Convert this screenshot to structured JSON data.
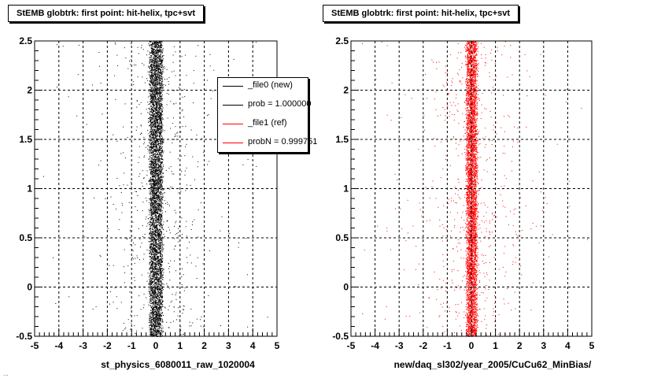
{
  "colors": {
    "new": "#000000",
    "ref": "#ff0000",
    "grid": "#000000",
    "background": "#ffffff"
  },
  "footer": {
    "text": "..."
  },
  "chart_data": [
    {
      "type": "scatter",
      "title": "StEMB globtrk: first point: hit-helix, tpc+svt",
      "xlabel": "st_physics_6080011_raw_1020004",
      "ylabel": "",
      "xlim": [
        -5,
        5
      ],
      "ylim": [
        -0.5,
        2.5
      ],
      "xticks": [
        -5,
        -4,
        -3,
        -2,
        -1,
        0,
        1,
        2,
        3,
        4,
        5
      ],
      "yticks": [
        -0.5,
        0,
        0.5,
        1,
        1.5,
        2,
        2.5
      ],
      "xtick_labels": [
        "-5",
        "-4",
        "-3",
        "-2",
        "-1",
        "0",
        "1",
        "2",
        "3",
        "4",
        "5"
      ],
      "ytick_labels": [
        "-0.5",
        "0",
        "0.5",
        "1",
        "1.5",
        "2",
        "2.5"
      ],
      "grid": true,
      "legend_position": "top-right",
      "series": [
        {
          "name": "_file0 (new)",
          "color": "#000000",
          "x_center": 0.0,
          "x_core_width": 0.5,
          "density": "very high"
        }
      ],
      "legend": [
        {
          "label": "_file0 (new)",
          "color": "#000000"
        },
        {
          "label": "prob = 1.000000",
          "color": "#000000"
        },
        {
          "label": "_file1 (ref)",
          "color": "#ff0000"
        },
        {
          "label": "probN = 0.999751",
          "color": "#ff0000"
        }
      ]
    },
    {
      "type": "scatter",
      "title": "StEMB globtrk: first point: hit-helix, tpc+svt",
      "xlabel": "new/daq_sl302/year_2005/CuCu62_MinBias/",
      "ylabel": "",
      "xlim": [
        -5,
        5
      ],
      "ylim": [
        -0.5,
        2.5
      ],
      "xticks": [
        -5,
        -4,
        -3,
        -2,
        -1,
        0,
        1,
        2,
        3,
        4,
        5
      ],
      "yticks": [
        -0.5,
        0,
        0.5,
        1,
        1.5,
        2,
        2.5
      ],
      "xtick_labels": [
        "-5",
        "-4",
        "-3",
        "-2",
        "-1",
        "0",
        "1",
        "2",
        "3",
        "4",
        "5"
      ],
      "ytick_labels": [
        "-0.5",
        "0",
        "0.5",
        "1",
        "1.5",
        "2",
        "2.5"
      ],
      "grid": true,
      "series": [
        {
          "name": "_file1 (ref)",
          "color": "#ff0000",
          "x_center": 0.0,
          "x_core_width": 0.4,
          "density": "very high"
        }
      ]
    }
  ]
}
